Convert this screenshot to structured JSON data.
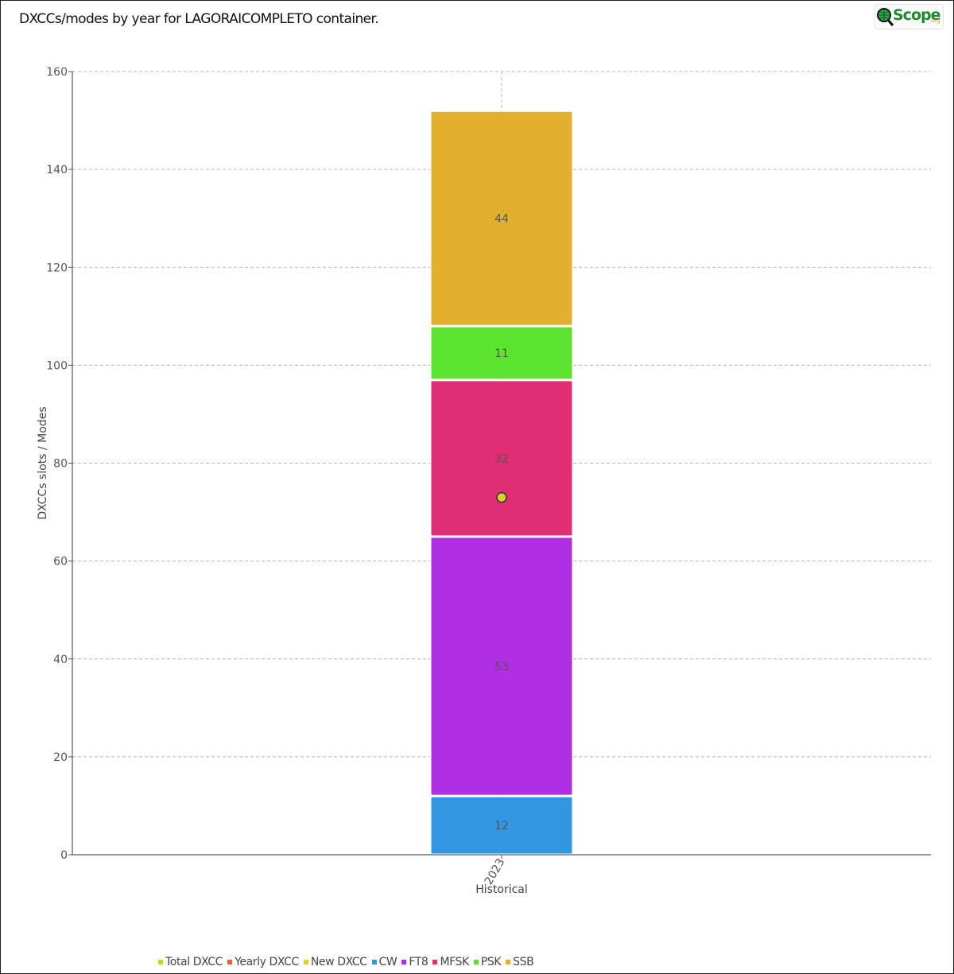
{
  "page": {
    "title": "DXCCs/modes by year for LAGORAICOMPLETO container.",
    "logo_text": "Scope",
    "logo_sub": ".org"
  },
  "chart_data": {
    "type": "bar",
    "stacked": true,
    "categories": [
      "2023"
    ],
    "xlabel": "Historical",
    "ylabel": "DXCCs slots / Modes",
    "ylim": [
      0,
      160
    ],
    "yticks": [
      0,
      20,
      40,
      60,
      80,
      100,
      120,
      140,
      160
    ],
    "grid": true,
    "legend_position": "bottom-left",
    "series": [
      {
        "name": "CW",
        "values": [
          12
        ],
        "color": "#3197e3"
      },
      {
        "name": "FT8",
        "values": [
          53
        ],
        "color": "#b02ee3"
      },
      {
        "name": "MFSK",
        "values": [
          32
        ],
        "color": "#e02e72"
      },
      {
        "name": "PSK",
        "values": [
          11
        ],
        "color": "#5ce32e"
      },
      {
        "name": "SSB",
        "values": [
          44
        ],
        "color": "#e3b02e"
      }
    ],
    "points": [
      {
        "name": "New DXCC",
        "values": [
          73
        ],
        "color": "#d9d128"
      }
    ],
    "legend": [
      {
        "name": "Total DXCC",
        "color": "#b9d82a"
      },
      {
        "name": "Yearly DXCC",
        "color": "#e3642e"
      },
      {
        "name": "New DXCC",
        "color": "#d9d128"
      },
      {
        "name": "CW",
        "color": "#3197e3"
      },
      {
        "name": "FT8",
        "color": "#b02ee3"
      },
      {
        "name": "MFSK",
        "color": "#e02e72"
      },
      {
        "name": "PSK",
        "color": "#5ce32e"
      },
      {
        "name": "SSB",
        "color": "#e3b02e"
      }
    ]
  }
}
